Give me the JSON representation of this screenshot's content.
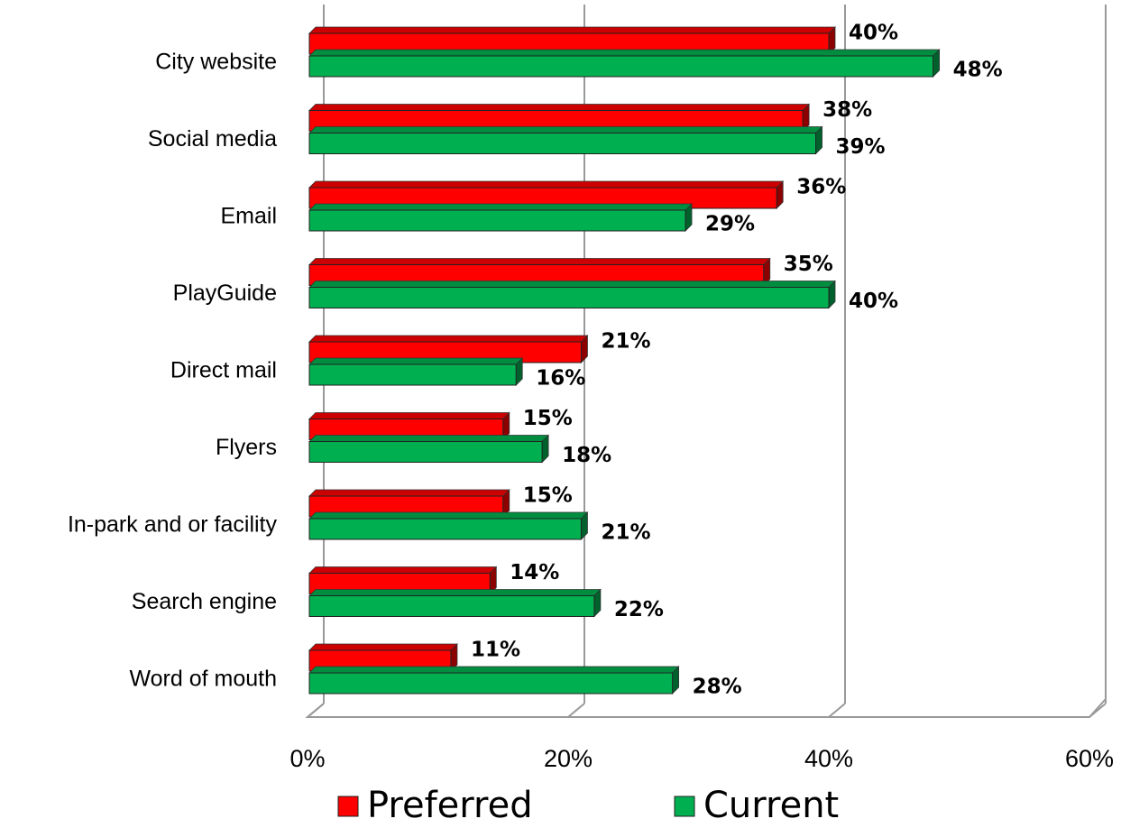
{
  "chart_data": {
    "type": "bar",
    "orientation": "horizontal",
    "categories": [
      "City website",
      "Social media",
      "Email",
      "PlayGuide",
      "Direct mail",
      "Flyers",
      "In-park and or facility",
      "Search engine",
      "Word of mouth"
    ],
    "series": [
      {
        "name": "Preferred",
        "color": "#ff0000",
        "values": [
          40,
          38,
          36,
          35,
          21,
          15,
          15,
          14,
          11
        ],
        "value_labels": [
          "40%",
          "38%",
          "36%",
          "35%",
          "21%",
          "15%",
          "15%",
          "14%",
          "11%"
        ]
      },
      {
        "name": "Current",
        "color": "#00b050",
        "values": [
          48,
          39,
          29,
          40,
          16,
          18,
          21,
          22,
          28
        ],
        "value_labels": [
          "48%",
          "39%",
          "29%",
          "40%",
          "16%",
          "18%",
          "21%",
          "22%",
          "28%"
        ]
      }
    ],
    "xlim": [
      0,
      60
    ],
    "xticks": [
      {
        "value": 0,
        "label": "0%"
      },
      {
        "value": 20,
        "label": "20%"
      },
      {
        "value": 40,
        "label": "40%"
      },
      {
        "value": 60,
        "label": "60%"
      }
    ],
    "grid": true,
    "legend": "bottom"
  }
}
